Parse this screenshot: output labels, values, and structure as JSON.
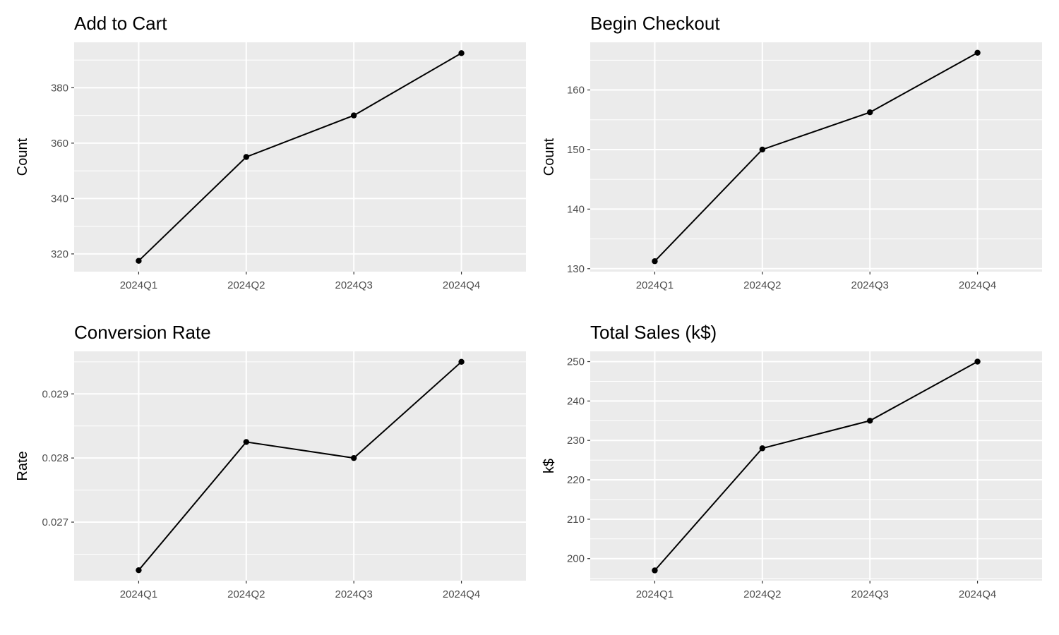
{
  "chart_data": [
    {
      "type": "line",
      "title": "Add to Cart",
      "ylabel": "Count",
      "xlabel": "",
      "categories": [
        "2024Q1",
        "2024Q2",
        "2024Q3",
        "2024Q4"
      ],
      "series": [
        {
          "values": [
            317.5,
            355.0,
            370.0,
            392.5
          ]
        }
      ],
      "ylim": [
        313.6,
        396.4
      ],
      "yticks": [
        320,
        340,
        360,
        380
      ],
      "ytick_labels": [
        "320",
        "340",
        "360",
        "380"
      ],
      "grid": true,
      "legend": "none",
      "background": "#ebebeb"
    },
    {
      "type": "line",
      "title": "Begin Checkout",
      "ylabel": "Count",
      "xlabel": "",
      "categories": [
        "2024Q1",
        "2024Q2",
        "2024Q3",
        "2024Q4"
      ],
      "series": [
        {
          "values": [
            131.25,
            150.0,
            156.25,
            166.25
          ]
        }
      ],
      "ylim": [
        129.5,
        168.0
      ],
      "yticks": [
        130,
        140,
        150,
        160
      ],
      "ytick_labels": [
        "130",
        "140",
        "150",
        "160"
      ],
      "grid": true,
      "legend": "none",
      "background": "#ebebeb"
    },
    {
      "type": "line",
      "title": "Conversion Rate",
      "ylabel": "Rate",
      "xlabel": "",
      "categories": [
        "2024Q1",
        "2024Q2",
        "2024Q3",
        "2024Q4"
      ],
      "series": [
        {
          "values": [
            0.02625,
            0.02825,
            0.028,
            0.0295
          ]
        }
      ],
      "ylim": [
        0.026087,
        0.029663
      ],
      "yticks": [
        0.027,
        0.028,
        0.029
      ],
      "ytick_labels": [
        "0.027",
        "0.028",
        "0.029"
      ],
      "grid": true,
      "legend": "none",
      "background": "#ebebeb"
    },
    {
      "type": "line",
      "title": "Total Sales (k$)",
      "ylabel": "k$",
      "xlabel": "",
      "categories": [
        "2024Q1",
        "2024Q2",
        "2024Q3",
        "2024Q4"
      ],
      "series": [
        {
          "values": [
            197.0,
            228.0,
            235.0,
            250.0
          ]
        }
      ],
      "ylim": [
        194.4,
        252.6
      ],
      "yticks": [
        200,
        210,
        220,
        230,
        240,
        250
      ],
      "ytick_labels": [
        "200",
        "210",
        "220",
        "230",
        "240",
        "250"
      ],
      "grid": true,
      "legend": "none",
      "background": "#ebebeb"
    }
  ]
}
